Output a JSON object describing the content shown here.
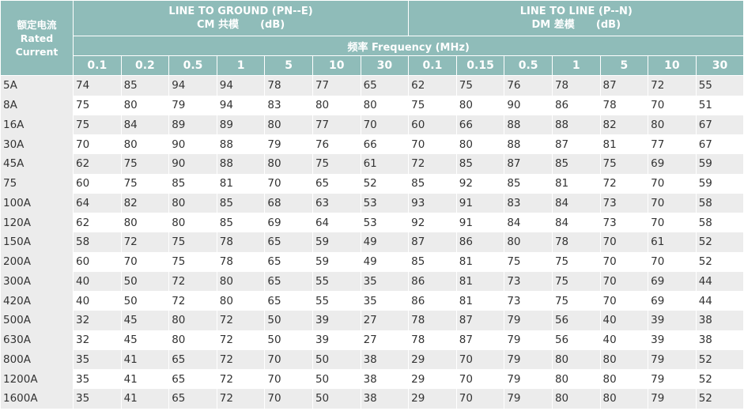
{
  "header": {
    "corner": [
      "额定电流",
      "Rated",
      "Current"
    ],
    "cm": [
      "LINE TO GROUND (PN--E)",
      "CM 共模      (dB)"
    ],
    "dm": [
      "LINE TO LINE (P--N)",
      "DM 差模      (dB)"
    ],
    "frequency": "频率 Frequency (MHz)",
    "cm_freqs": [
      "0.1",
      "0.2",
      "0.5",
      "1",
      "5",
      "10",
      "30"
    ],
    "dm_freqs": [
      "0.1",
      "0.15",
      "0.5",
      "1",
      "5",
      "10",
      "30"
    ]
  },
  "rows": [
    {
      "label": "5A",
      "values": [
        "74",
        "85",
        "94",
        "94",
        "78",
        "77",
        "65",
        "62",
        "75",
        "76",
        "78",
        "87",
        "72",
        "55"
      ]
    },
    {
      "label": "8A",
      "values": [
        "75",
        "80",
        "79",
        "94",
        "83",
        "80",
        "80",
        "75",
        "80",
        "90",
        "86",
        "78",
        "70",
        "51"
      ]
    },
    {
      "label": "16A",
      "values": [
        "75",
        "84",
        "89",
        "89",
        "80",
        "77",
        "70",
        "60",
        "66",
        "88",
        "88",
        "82",
        "80",
        "67"
      ]
    },
    {
      "label": "30A",
      "values": [
        "70",
        "80",
        "90",
        "88",
        "79",
        "76",
        "66",
        "70",
        "80",
        "88",
        "87",
        "81",
        "77",
        "67"
      ]
    },
    {
      "label": "45A",
      "values": [
        "62",
        "75",
        "90",
        "88",
        "80",
        "75",
        "61",
        "72",
        "85",
        "87",
        "85",
        "75",
        "69",
        "59"
      ]
    },
    {
      "label": "75",
      "values": [
        "60",
        "75",
        "85",
        "81",
        "70",
        "65",
        "52",
        "85",
        "92",
        "85",
        "81",
        "72",
        "70",
        "59"
      ]
    },
    {
      "label": "100A",
      "values": [
        "64",
        "82",
        "80",
        "85",
        "68",
        "63",
        "53",
        "93",
        "91",
        "83",
        "84",
        "73",
        "70",
        "58"
      ]
    },
    {
      "label": "120A",
      "values": [
        "62",
        "80",
        "80",
        "85",
        "69",
        "64",
        "53",
        "92",
        "91",
        "84",
        "84",
        "73",
        "70",
        "58"
      ]
    },
    {
      "label": "150A",
      "values": [
        "58",
        "72",
        "75",
        "78",
        "65",
        "59",
        "49",
        "87",
        "86",
        "80",
        "78",
        "70",
        "61",
        "52"
      ]
    },
    {
      "label": "200A",
      "values": [
        "60",
        "70",
        "75",
        "78",
        "65",
        "59",
        "49",
        "85",
        "81",
        "75",
        "75",
        "70",
        "70",
        "52"
      ]
    },
    {
      "label": "300A",
      "values": [
        "40",
        "50",
        "72",
        "80",
        "65",
        "55",
        "35",
        "86",
        "81",
        "73",
        "75",
        "70",
        "69",
        "44"
      ]
    },
    {
      "label": "420A",
      "values": [
        "40",
        "50",
        "72",
        "80",
        "65",
        "55",
        "35",
        "86",
        "81",
        "73",
        "75",
        "70",
        "69",
        "44"
      ]
    },
    {
      "label": "500A",
      "values": [
        "32",
        "45",
        "80",
        "72",
        "50",
        "39",
        "27",
        "78",
        "87",
        "79",
        "56",
        "40",
        "39",
        "38"
      ]
    },
    {
      "label": "630A",
      "values": [
        "32",
        "45",
        "80",
        "72",
        "50",
        "39",
        "27",
        "78",
        "87",
        "79",
        "56",
        "40",
        "39",
        "38"
      ]
    },
    {
      "label": "800A",
      "values": [
        "35",
        "41",
        "65",
        "72",
        "70",
        "50",
        "38",
        "29",
        "70",
        "79",
        "80",
        "80",
        "79",
        "52"
      ]
    },
    {
      "label": "1200A",
      "values": [
        "35",
        "41",
        "65",
        "72",
        "70",
        "50",
        "38",
        "29",
        "70",
        "79",
        "80",
        "80",
        "79",
        "52"
      ]
    },
    {
      "label": "1600A",
      "values": [
        "35",
        "41",
        "65",
        "72",
        "70",
        "50",
        "38",
        "29",
        "70",
        "79",
        "80",
        "80",
        "79",
        "52"
      ]
    }
  ]
}
